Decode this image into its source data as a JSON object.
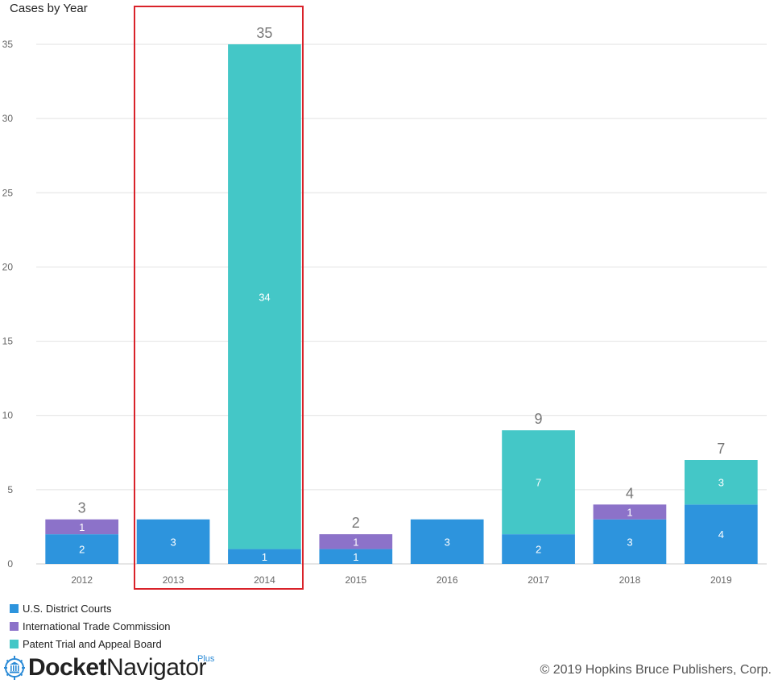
{
  "chart_data": {
    "type": "bar",
    "stacked": true,
    "title": "Cases by Year",
    "categories": [
      "2012",
      "2013",
      "2014",
      "2015",
      "2016",
      "2017",
      "2018",
      "2019"
    ],
    "series": [
      {
        "name": "U.S. District Courts",
        "color": "#2d94dd",
        "values": [
          2,
          3,
          1,
          1,
          3,
          2,
          3,
          4
        ]
      },
      {
        "name": "International Trade Commission",
        "color": "#8c72c9",
        "values": [
          1,
          0,
          0,
          1,
          0,
          0,
          1,
          0
        ]
      },
      {
        "name": "Patent Trial and Appeal Board",
        "color": "#44c7c7",
        "values": [
          0,
          0,
          34,
          0,
          0,
          7,
          0,
          3
        ]
      }
    ],
    "totals": [
      3,
      3,
      35,
      2,
      3,
      9,
      4,
      7
    ],
    "show_total_for": [
      "2012",
      "2014",
      "2015",
      "2017",
      "2018",
      "2019"
    ],
    "ylim": [
      0,
      35
    ],
    "yticks": [
      0,
      5,
      10,
      15,
      20,
      25,
      30,
      35
    ],
    "grid": true,
    "legend_position": "bottom-left",
    "highlight_categories": [
      "2013",
      "2014"
    ],
    "highlight_color": "#d9222a"
  },
  "branding": {
    "logo_word1": "Docket",
    "logo_word2": "Navigator",
    "logo_plus": "Plus",
    "copyright": "© 2019 Hopkins Bruce Publishers, Corp."
  }
}
